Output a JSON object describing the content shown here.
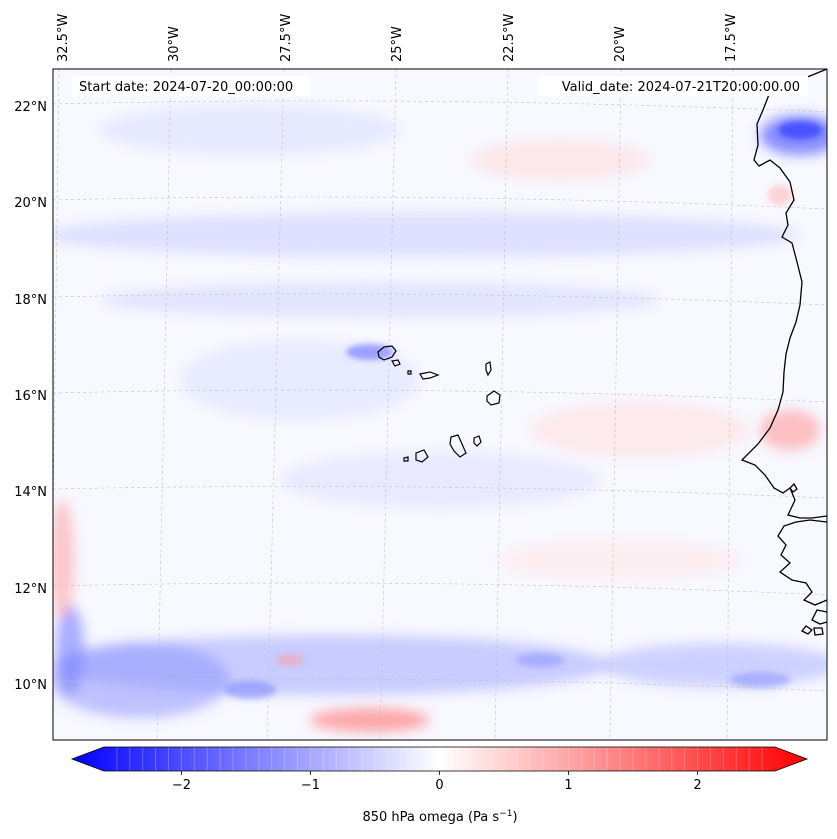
{
  "chart_data": {
    "type": "map-contour",
    "region": "Eastern tropical Atlantic, Cape Verde islands and West African coast",
    "annotations": {
      "start_date": "Start date: 2024-07-20_00:00:00",
      "valid_date": "Valid_date: 2024-07-21T20:00:00.00"
    },
    "lon_ticks": [
      "32.5°W",
      "30°W",
      "27.5°W",
      "25°W",
      "22.5°W",
      "20°W",
      "17.5°W"
    ],
    "lat_ticks": [
      "22°N",
      "20°N",
      "18°N",
      "16°N",
      "14°N",
      "12°N",
      "10°N"
    ],
    "colorbar": {
      "label_main": "850 hPa omega (Pa s",
      "label_exp": "−1",
      "label_close": ")",
      "ticks": [
        "−2",
        "−1",
        "0",
        "1",
        "2"
      ],
      "tick_values": [
        -2,
        -1,
        0,
        1,
        2
      ],
      "range": [
        -2.6,
        2.6
      ],
      "colormap": "bwr",
      "extend": "both"
    },
    "colors": {
      "negative": "#0000ff",
      "zero": "#ffffff",
      "positive": "#ff0000",
      "coast": "#000000",
      "grid": "#cccccc"
    }
  }
}
